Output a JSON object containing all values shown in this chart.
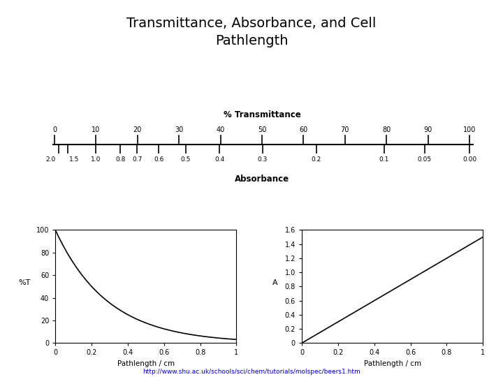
{
  "title": "Transmittance, Absorbance, and Cell\nPathlength",
  "title_fontsize": 14,
  "background_color": "#ffffff",
  "transmittance_label": "% Transmittance",
  "absorbance_label": "Absorbance",
  "trans_ticks": [
    0,
    10,
    20,
    30,
    40,
    50,
    60,
    70,
    80,
    90,
    100
  ],
  "abs_vals": [
    2.0,
    1.5,
    1.0,
    0.8,
    0.7,
    0.6,
    0.5,
    0.4,
    0.3,
    0.2,
    0.1,
    0.05,
    0.0
  ],
  "abs_labels": [
    "2.0",
    "1.5",
    "1.0",
    "0.8",
    "0.7",
    "0.6",
    "0.5",
    "0.4",
    "0.3",
    "0.2",
    "0.1",
    "0.05",
    "0.00"
  ],
  "plot1_xlabel": "Pathlength / cm",
  "plot1_ylabel": "%T",
  "plot1_ylim": [
    0,
    100
  ],
  "plot1_yticks": [
    0,
    20,
    40,
    60,
    80,
    100
  ],
  "plot1_ytick_labels": [
    "0",
    "20",
    "40",
    "60",
    "80",
    "100"
  ],
  "plot2_xlabel": "Pathlength / cm",
  "plot2_ylabel": "A",
  "plot2_ylim": [
    0,
    1.6
  ],
  "plot2_yticks": [
    0,
    0.2,
    0.4,
    0.6,
    0.8,
    1.0,
    1.2,
    1.4,
    1.6
  ],
  "plot2_ytick_labels": [
    "0",
    "0.2",
    "0.4",
    "0.6",
    "0.8",
    "1.0",
    "1.2",
    "1.4",
    "1.6"
  ],
  "epsilon_c": 1.5,
  "url": "http://www.shu.ac.uk/schools/sci/chem/tutorials/molspec/beers1.htm",
  "line_color": "#000000",
  "font_family": "sans-serif"
}
